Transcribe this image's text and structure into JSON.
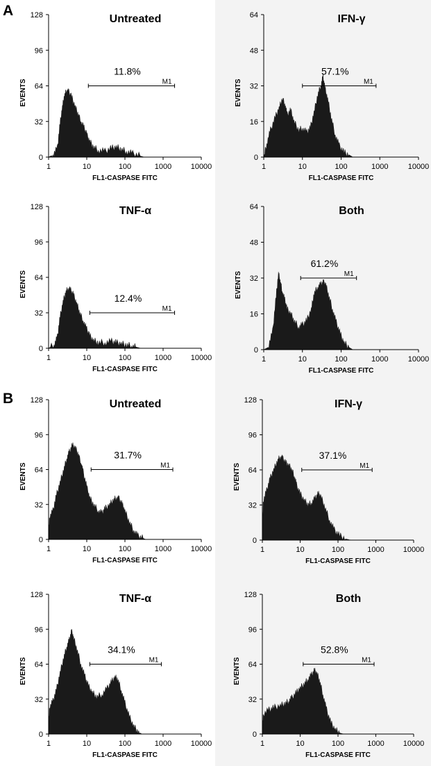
{
  "figure": {
    "panel_labels": [
      "A",
      "B"
    ],
    "colors": {
      "histogram_fill": "#1a1a1a",
      "axis": "#000000",
      "right_column_bg": "#f3f3f3"
    }
  },
  "chart_data": [
    {
      "type": "histogram",
      "panel": "A",
      "title": "Untreated",
      "xlabel": "FL1-CASPASE FITC",
      "ylabel": "EVENTS",
      "x_scale": "log",
      "xlim": [
        1,
        10000
      ],
      "x_ticks": [
        "1",
        "10",
        "100",
        "1000",
        "10000"
      ],
      "ylim": [
        0,
        128
      ],
      "y_ticks": [
        "0",
        "32",
        "64",
        "96",
        "128"
      ],
      "marker": {
        "label": "M1",
        "percent": "11.8%",
        "range": [
          11,
          2000
        ],
        "level": 64
      },
      "profile": [
        [
          1,
          0
        ],
        [
          1.3,
          2
        ],
        [
          1.7,
          8
        ],
        [
          2.0,
          30
        ],
        [
          2.3,
          45
        ],
        [
          2.6,
          55
        ],
        [
          3.0,
          60
        ],
        [
          3.4,
          58
        ],
        [
          4.0,
          54
        ],
        [
          5.0,
          45
        ],
        [
          6.0,
          38
        ],
        [
          7.0,
          32
        ],
        [
          8.5,
          26
        ],
        [
          10,
          20
        ],
        [
          12,
          14
        ],
        [
          15,
          9
        ],
        [
          20,
          6
        ],
        [
          30,
          5
        ],
        [
          45,
          8
        ],
        [
          60,
          9
        ],
        [
          80,
          7
        ],
        [
          110,
          5
        ],
        [
          160,
          3
        ],
        [
          250,
          1
        ],
        [
          320,
          0
        ]
      ]
    },
    {
      "type": "histogram",
      "panel": "A",
      "title": "IFN-γ",
      "xlabel": "FL1-CASPASE FITC",
      "ylabel": "EVENTS",
      "x_scale": "log",
      "xlim": [
        1,
        10000
      ],
      "x_ticks": [
        "1",
        "10",
        "100",
        "1000",
        "10000"
      ],
      "ylim": [
        0,
        64
      ],
      "y_ticks": [
        "0",
        "16",
        "32",
        "48",
        "64"
      ],
      "marker": {
        "label": "M1",
        "percent": "57.1%",
        "range": [
          10,
          800
        ],
        "level": 32
      },
      "profile": [
        [
          1,
          0
        ],
        [
          1.2,
          6
        ],
        [
          1.5,
          12
        ],
        [
          2.0,
          18
        ],
        [
          2.5,
          22
        ],
        [
          3.0,
          26
        ],
        [
          3.5,
          24
        ],
        [
          4.0,
          19
        ],
        [
          5.0,
          21
        ],
        [
          6.0,
          16
        ],
        [
          8.0,
          12
        ],
        [
          10,
          13
        ],
        [
          13,
          11
        ],
        [
          16,
          13
        ],
        [
          20,
          20
        ],
        [
          25,
          28
        ],
        [
          30,
          32
        ],
        [
          34,
          36
        ],
        [
          38,
          31
        ],
        [
          45,
          26
        ],
        [
          55,
          18
        ],
        [
          70,
          10
        ],
        [
          90,
          5
        ],
        [
          120,
          2
        ],
        [
          160,
          1
        ],
        [
          200,
          0
        ]
      ]
    },
    {
      "type": "histogram",
      "panel": "A",
      "title": "TNF-α",
      "xlabel": "FL1-CASPASE FITC",
      "ylabel": "EVENTS",
      "x_scale": "log",
      "xlim": [
        1,
        10000
      ],
      "x_ticks": [
        "1",
        "10",
        "100",
        "1000",
        "10000"
      ],
      "ylim": [
        0,
        128
      ],
      "y_ticks": [
        "0",
        "32",
        "64",
        "96",
        "128"
      ],
      "marker": {
        "label": "M1",
        "percent": "12.4%",
        "range": [
          12,
          2000
        ],
        "level": 32
      },
      "profile": [
        [
          1,
          0
        ],
        [
          1.4,
          3
        ],
        [
          1.7,
          10
        ],
        [
          2.0,
          28
        ],
        [
          2.4,
          42
        ],
        [
          2.8,
          50
        ],
        [
          3.2,
          54
        ],
        [
          3.8,
          52
        ],
        [
          4.5,
          48
        ],
        [
          5.5,
          40
        ],
        [
          6.5,
          32
        ],
        [
          8.0,
          25
        ],
        [
          10,
          17
        ],
        [
          12,
          11
        ],
        [
          15,
          7
        ],
        [
          20,
          5
        ],
        [
          30,
          5
        ],
        [
          45,
          6
        ],
        [
          60,
          5
        ],
        [
          80,
          4
        ],
        [
          110,
          3
        ],
        [
          150,
          2
        ],
        [
          200,
          1
        ],
        [
          260,
          0
        ]
      ]
    },
    {
      "type": "histogram",
      "panel": "A",
      "title": "Both",
      "xlabel": "FL1-CASPASE FITC",
      "ylabel": "EVENTS",
      "x_scale": "log",
      "xlim": [
        1,
        10000
      ],
      "x_ticks": [
        "1",
        "10",
        "100",
        "1000",
        "10000"
      ],
      "ylim": [
        0,
        64
      ],
      "y_ticks": [
        "0",
        "16",
        "32",
        "48",
        "64"
      ],
      "marker": {
        "label": "M1",
        "percent": "61.2%",
        "range": [
          9,
          250
        ],
        "level": 32
      },
      "profile": [
        [
          1,
          0
        ],
        [
          1.3,
          1
        ],
        [
          1.7,
          8
        ],
        [
          2.1,
          24
        ],
        [
          2.4,
          34
        ],
        [
          2.7,
          30
        ],
        [
          3.0,
          26
        ],
        [
          3.5,
          22
        ],
        [
          4.0,
          18
        ],
        [
          5.0,
          16
        ],
        [
          6.0,
          13
        ],
        [
          8.0,
          10
        ],
        [
          10,
          11
        ],
        [
          13,
          13
        ],
        [
          17,
          18
        ],
        [
          20,
          25
        ],
        [
          25,
          28
        ],
        [
          30,
          29
        ],
        [
          35,
          30
        ],
        [
          40,
          29
        ],
        [
          48,
          24
        ],
        [
          60,
          18
        ],
        [
          75,
          12
        ],
        [
          95,
          7
        ],
        [
          120,
          3
        ],
        [
          160,
          1
        ],
        [
          200,
          0
        ]
      ]
    },
    {
      "type": "histogram",
      "panel": "B",
      "title": "Untreated",
      "xlabel": "FL1-CASPASE FITC",
      "ylabel": "EVENTS",
      "x_scale": "log",
      "xlim": [
        1,
        10000
      ],
      "x_ticks": [
        "1",
        "10",
        "100",
        "1000",
        "10000"
      ],
      "ylim": [
        0,
        128
      ],
      "y_ticks": [
        "0",
        "32",
        "64",
        "96",
        "128"
      ],
      "marker": {
        "label": "M1",
        "percent": "31.7%",
        "range": [
          13,
          1800
        ],
        "level": 64
      },
      "profile": [
        [
          1,
          0
        ],
        [
          1.05,
          20
        ],
        [
          1.3,
          26
        ],
        [
          1.6,
          40
        ],
        [
          2.0,
          52
        ],
        [
          2.5,
          64
        ],
        [
          3.0,
          74
        ],
        [
          3.5,
          80
        ],
        [
          4.2,
          86
        ],
        [
          5.0,
          84
        ],
        [
          6.0,
          78
        ],
        [
          7.0,
          70
        ],
        [
          8.0,
          62
        ],
        [
          10,
          48
        ],
        [
          12,
          38
        ],
        [
          15,
          32
        ],
        [
          20,
          26
        ],
        [
          25,
          24
        ],
        [
          30,
          28
        ],
        [
          40,
          32
        ],
        [
          50,
          36
        ],
        [
          60,
          38
        ],
        [
          70,
          37
        ],
        [
          85,
          32
        ],
        [
          100,
          26
        ],
        [
          130,
          16
        ],
        [
          170,
          8
        ],
        [
          220,
          3
        ],
        [
          300,
          1
        ],
        [
          350,
          0
        ]
      ]
    },
    {
      "type": "histogram",
      "panel": "B",
      "title": "IFN-γ",
      "xlabel": "FL1-CASPASE FITC",
      "ylabel": "EVENTS",
      "x_scale": "log",
      "xlim": [
        1,
        10000
      ],
      "x_ticks": [
        "1",
        "10",
        "100",
        "1000",
        "10000"
      ],
      "ylim": [
        0,
        128
      ],
      "y_ticks": [
        "0",
        "32",
        "64",
        "96",
        "128"
      ],
      "marker": {
        "label": "M1",
        "percent": "37.1%",
        "range": [
          11,
          800
        ],
        "level": 64
      },
      "profile": [
        [
          1,
          0
        ],
        [
          1.05,
          35
        ],
        [
          1.3,
          45
        ],
        [
          1.6,
          56
        ],
        [
          2.0,
          64
        ],
        [
          2.5,
          72
        ],
        [
          3.0,
          76
        ],
        [
          3.5,
          74
        ],
        [
          4.2,
          70
        ],
        [
          5.0,
          68
        ],
        [
          6.0,
          64
        ],
        [
          7.0,
          58
        ],
        [
          8.0,
          50
        ],
        [
          10,
          42
        ],
        [
          13,
          36
        ],
        [
          16,
          32
        ],
        [
          20,
          34
        ],
        [
          25,
          38
        ],
        [
          30,
          42
        ],
        [
          35,
          40
        ],
        [
          45,
          30
        ],
        [
          60,
          18
        ],
        [
          80,
          9
        ],
        [
          110,
          4
        ],
        [
          160,
          1
        ],
        [
          220,
          0
        ]
      ]
    },
    {
      "type": "histogram",
      "panel": "B",
      "title": "TNF-α",
      "xlabel": "FL1-CASPASE FITC",
      "ylabel": "EVENTS",
      "x_scale": "log",
      "xlim": [
        1,
        10000
      ],
      "x_ticks": [
        "1",
        "10",
        "100",
        "1000",
        "10000"
      ],
      "ylim": [
        0,
        128
      ],
      "y_ticks": [
        "0",
        "32",
        "64",
        "96",
        "128"
      ],
      "marker": {
        "label": "M1",
        "percent": "34.1%",
        "range": [
          12,
          900
        ],
        "level": 64
      },
      "profile": [
        [
          1,
          0
        ],
        [
          1.05,
          24
        ],
        [
          1.3,
          30
        ],
        [
          1.6,
          40
        ],
        [
          2.0,
          56
        ],
        [
          2.5,
          70
        ],
        [
          3.0,
          80
        ],
        [
          3.5,
          86
        ],
        [
          4.0,
          94
        ],
        [
          4.5,
          88
        ],
        [
          5.5,
          78
        ],
        [
          7.0,
          64
        ],
        [
          9.0,
          52
        ],
        [
          11,
          44
        ],
        [
          14,
          38
        ],
        [
          18,
          34
        ],
        [
          25,
          36
        ],
        [
          35,
          42
        ],
        [
          45,
          48
        ],
        [
          55,
          52
        ],
        [
          65,
          50
        ],
        [
          80,
          40
        ],
        [
          100,
          28
        ],
        [
          130,
          16
        ],
        [
          170,
          7
        ],
        [
          220,
          2
        ],
        [
          280,
          0
        ]
      ]
    },
    {
      "type": "histogram",
      "panel": "B",
      "title": "Both",
      "xlabel": "FL1-CASPASE FITC",
      "ylabel": "EVENTS",
      "x_scale": "log",
      "xlim": [
        1,
        10000
      ],
      "x_ticks": [
        "1",
        "10",
        "100",
        "1000",
        "10000"
      ],
      "ylim": [
        0,
        128
      ],
      "y_ticks": [
        "0",
        "32",
        "64",
        "96",
        "128"
      ],
      "marker": {
        "label": "M1",
        "percent": "52.8%",
        "range": [
          12,
          900
        ],
        "level": 64
      },
      "profile": [
        [
          1,
          0
        ],
        [
          1.05,
          18
        ],
        [
          1.5,
          22
        ],
        [
          2.0,
          24
        ],
        [
          3.0,
          26
        ],
        [
          4.0,
          28
        ],
        [
          5.0,
          30
        ],
        [
          6.0,
          33
        ],
        [
          8.0,
          38
        ],
        [
          10,
          42
        ],
        [
          13,
          46
        ],
        [
          16,
          50
        ],
        [
          20,
          54
        ],
        [
          24,
          58
        ],
        [
          28,
          55
        ],
        [
          33,
          48
        ],
        [
          40,
          36
        ],
        [
          50,
          22
        ],
        [
          65,
          10
        ],
        [
          85,
          4
        ],
        [
          110,
          1
        ],
        [
          140,
          0
        ]
      ]
    }
  ]
}
